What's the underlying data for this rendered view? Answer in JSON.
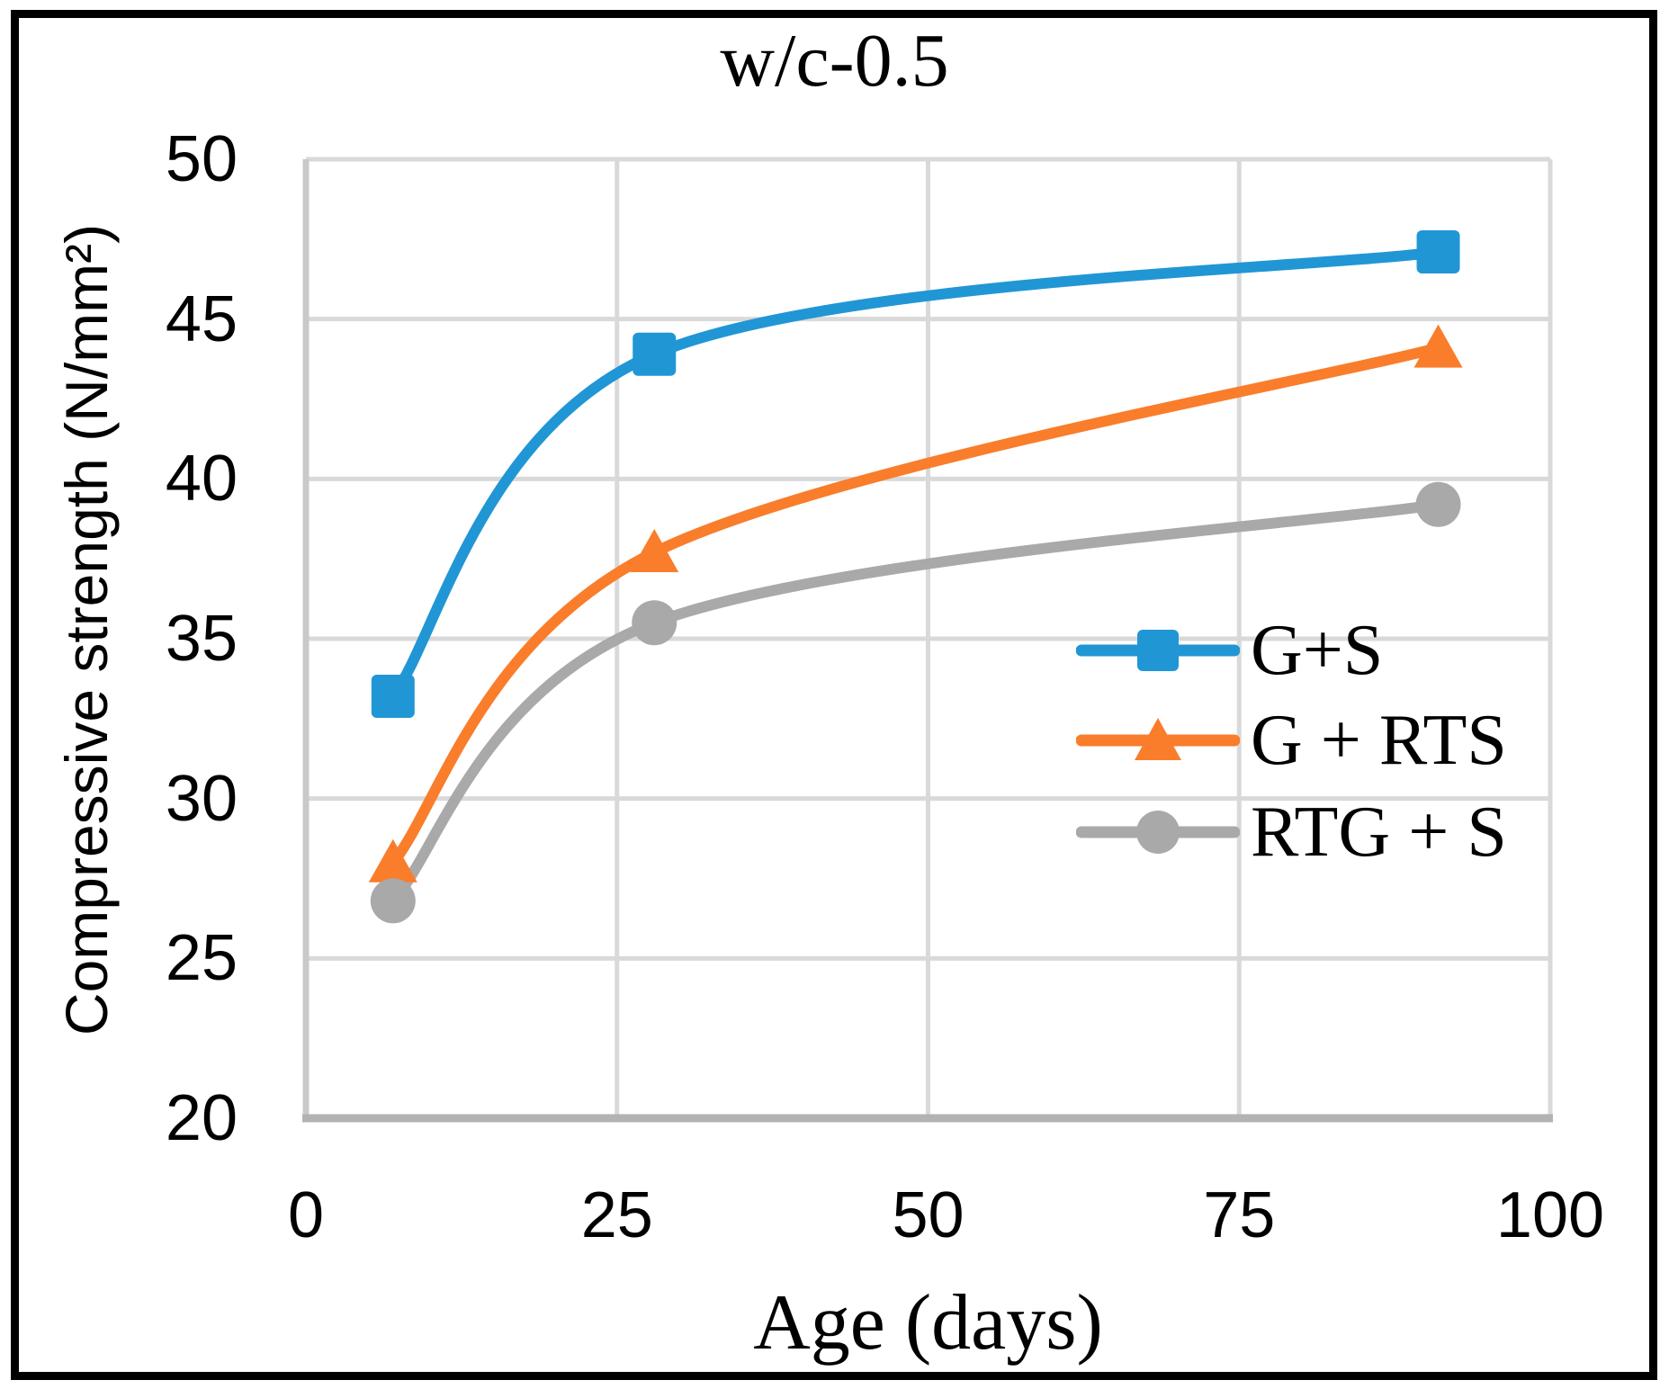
{
  "figure": {
    "border_color": "#000000",
    "background": "#FFFFFF"
  },
  "chart_data": {
    "type": "line",
    "title": "w/c-0.5",
    "xlabel": "Age (days)",
    "ylabel": "Compressive strength (N/mm²)",
    "xlim": [
      0,
      100
    ],
    "ylim": [
      20,
      50
    ],
    "xticks": [
      0,
      25,
      50,
      75,
      100
    ],
    "yticks": [
      20,
      25,
      30,
      35,
      40,
      45,
      50
    ],
    "grid": true,
    "smooth_lines": true,
    "legend_position": "inside-right",
    "x": [
      7,
      28,
      91
    ],
    "series": [
      {
        "name": "G+S",
        "marker": "square",
        "color": "#2196D5",
        "values": [
          33.2,
          43.9,
          47.1
        ]
      },
      {
        "name": "G + RTS",
        "marker": "triangle",
        "color": "#F97D2B",
        "values": [
          28.0,
          37.7,
          44.1
        ]
      },
      {
        "name": "RTG + S",
        "marker": "circle",
        "color": "#A9A9A9",
        "values": [
          26.8,
          35.5,
          39.2
        ]
      }
    ],
    "colors": {
      "gridline": "#D9D9D9",
      "axis_left": "#C9C9C9",
      "axis_bottom": "#B3B3B3",
      "text": "#000000"
    }
  }
}
